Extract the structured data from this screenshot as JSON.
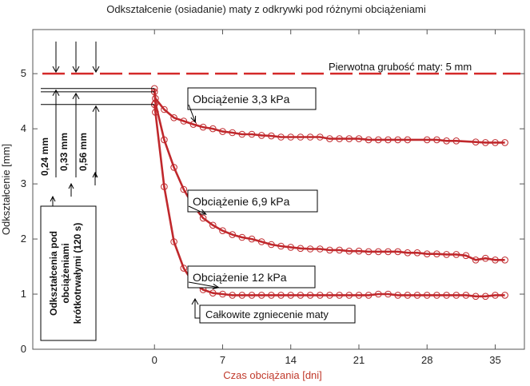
{
  "chart_data": {
    "type": "line",
    "title": "Odkształcenie (osiadanie) maty z odkrywki pod różnymi obciążeniami",
    "xlabel": "Czas obciążania [dni]",
    "ylabel": "Odkształcenie [mm]",
    "xlim": [
      -12.5,
      38
    ],
    "ylim": [
      0,
      5.8
    ],
    "xticks": [
      0,
      7,
      14,
      21,
      28,
      35
    ],
    "yticks": [
      0,
      1,
      2,
      3,
      4,
      5
    ],
    "grid": false,
    "reference_line": {
      "y": 5,
      "label": "Pierwotna grubość maty: 5 mm",
      "color": "#d42a2a"
    },
    "series": [
      {
        "name": "Obciążenie 3,3 kPa",
        "color": "#c0282c",
        "x": [
          0,
          0.1,
          1,
          2,
          3,
          4,
          5,
          6,
          7,
          8,
          9,
          10,
          11,
          12,
          13,
          14,
          15,
          16,
          17,
          18,
          19,
          20,
          21,
          22,
          23,
          24,
          25,
          26,
          28,
          29,
          30,
          31,
          33,
          34,
          35,
          36
        ],
        "y": [
          4.73,
          4.55,
          4.35,
          4.2,
          4.14,
          4.08,
          4.03,
          4.0,
          3.95,
          3.93,
          3.9,
          3.9,
          3.88,
          3.87,
          3.85,
          3.85,
          3.85,
          3.85,
          3.85,
          3.82,
          3.82,
          3.82,
          3.82,
          3.8,
          3.8,
          3.8,
          3.8,
          3.8,
          3.8,
          3.8,
          3.78,
          3.78,
          3.76,
          3.75,
          3.75,
          3.75
        ]
      },
      {
        "name": "Obciążenie 6,9 kPa",
        "color": "#c0282c",
        "x": [
          0,
          0.1,
          1,
          2,
          3,
          4,
          5,
          6,
          7,
          8,
          9,
          10,
          11,
          12,
          13,
          14,
          15,
          16,
          17,
          18,
          19,
          20,
          21,
          22,
          23,
          24,
          25,
          26,
          27,
          28,
          29,
          30,
          31,
          32,
          33,
          34,
          35,
          36
        ],
        "y": [
          4.67,
          4.47,
          3.8,
          3.3,
          2.9,
          2.6,
          2.38,
          2.25,
          2.15,
          2.08,
          2.03,
          2.0,
          1.95,
          1.9,
          1.87,
          1.85,
          1.83,
          1.82,
          1.82,
          1.8,
          1.8,
          1.78,
          1.78,
          1.77,
          1.77,
          1.77,
          1.77,
          1.75,
          1.75,
          1.73,
          1.73,
          1.72,
          1.72,
          1.7,
          1.62,
          1.65,
          1.62,
          1.62
        ]
      },
      {
        "name": "Obciążenie 12 kPa",
        "color": "#c0282c",
        "x": [
          0,
          0.1,
          1,
          2,
          3,
          4,
          5,
          6,
          7,
          8,
          9,
          10,
          11,
          12,
          13,
          14,
          15,
          16,
          17,
          18,
          19,
          20,
          21,
          22,
          23,
          24,
          25,
          26,
          27,
          28,
          29,
          30,
          31,
          32,
          33,
          34,
          35,
          36
        ],
        "y": [
          4.44,
          4.3,
          2.95,
          1.95,
          1.47,
          1.2,
          1.08,
          1.02,
          1.0,
          0.98,
          0.98,
          0.98,
          0.98,
          0.98,
          0.98,
          0.98,
          0.98,
          0.98,
          0.98,
          0.98,
          0.98,
          0.98,
          0.98,
          0.98,
          1.0,
          1.0,
          0.98,
          0.98,
          0.98,
          0.98,
          0.98,
          0.98,
          0.98,
          0.98,
          0.96,
          0.96,
          0.98,
          0.98
        ]
      }
    ],
    "annotations": {
      "load_3": "Obciążenie 3,3 kPa",
      "load_6": "Obciążenie 6,9 kPa",
      "load_12": "Obciążenie 12 kPa",
      "crush": "Całkowite zgniecenie maty",
      "short_term_box": [
        "Odkształcenia pod",
        "obciążeniami",
        "krótkotrwałymi (120 s)"
      ],
      "deformations": [
        "0,24 mm",
        "0,33 mm",
        "0,56 mm"
      ]
    }
  }
}
